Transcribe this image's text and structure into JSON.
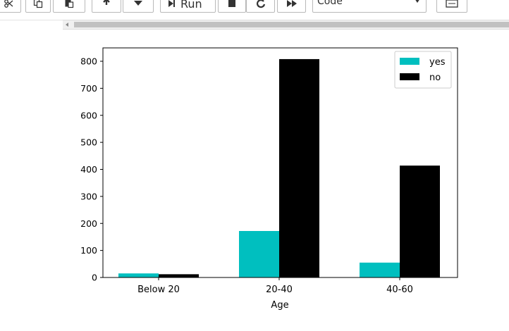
{
  "toolbar": {
    "run_label": "Run",
    "cell_type_value": "Code"
  },
  "colors": {
    "yes": "#00bfbf",
    "no": "#000000"
  },
  "chart_data": {
    "type": "bar",
    "title": "",
    "xlabel": "Age",
    "ylabel": "",
    "categories": [
      "Below 20",
      "20-40",
      "40-60"
    ],
    "series": [
      {
        "name": "yes",
        "values": [
          15,
          172,
          55
        ]
      },
      {
        "name": "no",
        "values": [
          12,
          808,
          414
        ]
      }
    ],
    "yticks": [
      0,
      100,
      200,
      300,
      400,
      500,
      600,
      700,
      800
    ],
    "ylim": [
      0,
      850
    ],
    "legend_position": "top-right"
  }
}
